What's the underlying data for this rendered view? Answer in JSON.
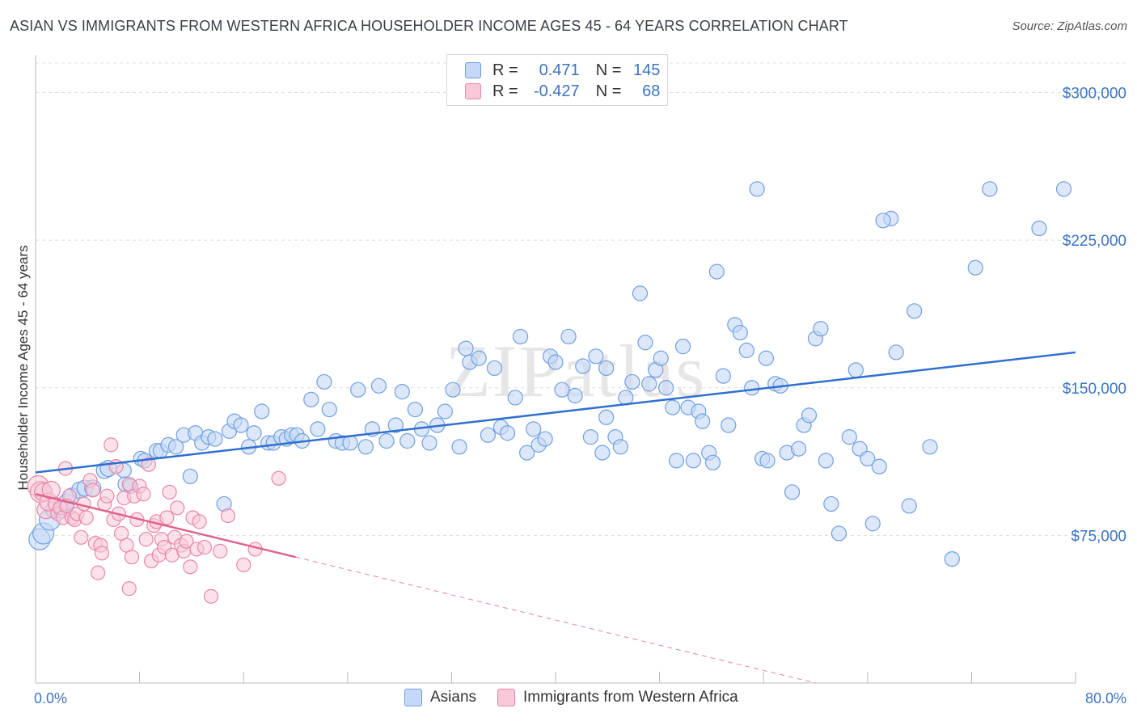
{
  "header": {
    "title": "ASIAN VS IMMIGRANTS FROM WESTERN AFRICA HOUSEHOLDER INCOME AGES 45 - 64 YEARS CORRELATION CHART",
    "source": "Source: ZipAtlas.com"
  },
  "legend_top": {
    "r_label": "R =",
    "n_label": "N =",
    "rows": [
      {
        "r": "0.471",
        "n": "145"
      },
      {
        "r": "-0.427",
        "n": "68"
      }
    ]
  },
  "colors": {
    "asians": "#6f9fe0",
    "asians_fill": "#c5d8f5",
    "asians_line": "#2f6fd0",
    "immigrants": "#ea86a8",
    "immigrants_fill": "#f8cad9",
    "immigrants_line": "#e0628e",
    "axis_label": "#3a75c4",
    "grid": "#dcdcdc"
  },
  "chart_data": {
    "type": "scatter",
    "title": "ASIAN VS IMMIGRANTS FROM WESTERN AFRICA HOUSEHOLDER INCOME AGES 45 - 64 YEARS CORRELATION CHART",
    "xlabel": "",
    "ylabel": "Householder Income Ages 45 - 64 years",
    "xlim": [
      0,
      80
    ],
    "ylim": [
      0,
      315000
    ],
    "x_tick_labels": [
      "0.0%",
      "80.0%"
    ],
    "y_ticks": [
      75000,
      150000,
      225000,
      300000
    ],
    "y_tick_labels": [
      "$75,000",
      "$150,000",
      "$225,000",
      "$300,000"
    ],
    "grid": true,
    "legend_position": "bottom-center",
    "watermark": "ZIPatlas",
    "series": [
      {
        "name": "Asians",
        "r": 0.471,
        "n": 145,
        "trend": {
          "x": [
            0,
            80
          ],
          "y": [
            107000,
            168000
          ]
        },
        "points": [
          [
            0.3,
            73000
          ],
          [
            0.6,
            76000
          ],
          [
            1.1,
            83000
          ],
          [
            1.4,
            88000
          ],
          [
            2.0,
            88000
          ],
          [
            2.4,
            92000
          ],
          [
            2.8,
            95000
          ],
          [
            3.4,
            98000
          ],
          [
            3.8,
            99000
          ],
          [
            4.4,
            99000
          ],
          [
            5.3,
            108000
          ],
          [
            5.6,
            109000
          ],
          [
            6.8,
            108000
          ],
          [
            6.9,
            101000
          ],
          [
            7.3,
            100000
          ],
          [
            8.1,
            114000
          ],
          [
            8.4,
            113000
          ],
          [
            9.3,
            118000
          ],
          [
            9.6,
            118000
          ],
          [
            10.2,
            121000
          ],
          [
            10.8,
            120000
          ],
          [
            11.4,
            126000
          ],
          [
            11.9,
            105000
          ],
          [
            12.3,
            127000
          ],
          [
            12.8,
            122000
          ],
          [
            13.3,
            125000
          ],
          [
            13.8,
            124000
          ],
          [
            14.5,
            91000
          ],
          [
            14.9,
            128000
          ],
          [
            15.3,
            133000
          ],
          [
            15.8,
            131000
          ],
          [
            16.4,
            120000
          ],
          [
            16.8,
            127000
          ],
          [
            17.4,
            138000
          ],
          [
            17.9,
            122000
          ],
          [
            18.3,
            122000
          ],
          [
            18.9,
            125000
          ],
          [
            19.3,
            124000
          ],
          [
            19.7,
            126000
          ],
          [
            20.1,
            126000
          ],
          [
            20.5,
            123000
          ],
          [
            21.2,
            144000
          ],
          [
            21.7,
            129000
          ],
          [
            22.2,
            153000
          ],
          [
            22.6,
            139000
          ],
          [
            23.1,
            123000
          ],
          [
            23.6,
            122000
          ],
          [
            24.2,
            122000
          ],
          [
            24.8,
            149000
          ],
          [
            25.4,
            120000
          ],
          [
            25.9,
            129000
          ],
          [
            26.4,
            151000
          ],
          [
            27.0,
            123000
          ],
          [
            27.7,
            131000
          ],
          [
            28.2,
            148000
          ],
          [
            28.6,
            123000
          ],
          [
            29.2,
            139000
          ],
          [
            29.7,
            129000
          ],
          [
            30.3,
            122000
          ],
          [
            30.9,
            131000
          ],
          [
            31.5,
            138000
          ],
          [
            32.1,
            149000
          ],
          [
            32.6,
            120000
          ],
          [
            33.1,
            170000
          ],
          [
            33.4,
            163000
          ],
          [
            34.1,
            165000
          ],
          [
            34.8,
            126000
          ],
          [
            35.3,
            160000
          ],
          [
            35.8,
            130000
          ],
          [
            36.3,
            127000
          ],
          [
            36.9,
            145000
          ],
          [
            37.3,
            176000
          ],
          [
            37.8,
            117000
          ],
          [
            38.3,
            129000
          ],
          [
            38.7,
            121000
          ],
          [
            39.2,
            124000
          ],
          [
            39.6,
            166000
          ],
          [
            40.0,
            163000
          ],
          [
            40.5,
            149000
          ],
          [
            41.0,
            176000
          ],
          [
            41.5,
            146000
          ],
          [
            42.1,
            161000
          ],
          [
            42.7,
            125000
          ],
          [
            43.1,
            166000
          ],
          [
            43.6,
            117000
          ],
          [
            43.9,
            135000
          ],
          [
            44.6,
            125000
          ],
          [
            45.0,
            120000
          ],
          [
            45.4,
            145000
          ],
          [
            45.9,
            153000
          ],
          [
            46.5,
            198000
          ],
          [
            46.9,
            173000
          ],
          [
            47.2,
            152000
          ],
          [
            47.7,
            159000
          ],
          [
            48.1,
            165000
          ],
          [
            48.5,
            150000
          ],
          [
            49.0,
            140000
          ],
          [
            49.3,
            113000
          ],
          [
            49.8,
            171000
          ],
          [
            50.2,
            140000
          ],
          [
            50.6,
            113000
          ],
          [
            51.0,
            138000
          ],
          [
            51.3,
            133000
          ],
          [
            51.8,
            117000
          ],
          [
            52.1,
            112000
          ],
          [
            52.4,
            209000
          ],
          [
            52.9,
            156000
          ],
          [
            53.3,
            131000
          ],
          [
            53.8,
            182000
          ],
          [
            54.2,
            178000
          ],
          [
            54.7,
            169000
          ],
          [
            55.1,
            150000
          ],
          [
            55.5,
            251000
          ],
          [
            55.9,
            114000
          ],
          [
            56.3,
            113000
          ],
          [
            56.9,
            152000
          ],
          [
            57.3,
            151000
          ],
          [
            57.8,
            117000
          ],
          [
            58.2,
            97000
          ],
          [
            58.7,
            119000
          ],
          [
            59.1,
            131000
          ],
          [
            59.5,
            136000
          ],
          [
            60.0,
            175000
          ],
          [
            60.4,
            180000
          ],
          [
            60.8,
            113000
          ],
          [
            61.2,
            91000
          ],
          [
            61.8,
            76000
          ],
          [
            62.6,
            125000
          ],
          [
            63.1,
            159000
          ],
          [
            63.4,
            119000
          ],
          [
            64.0,
            114000
          ],
          [
            64.4,
            81000
          ],
          [
            64.9,
            110000
          ],
          [
            65.8,
            236000
          ],
          [
            66.2,
            168000
          ],
          [
            67.2,
            90000
          ],
          [
            67.6,
            189000
          ],
          [
            68.8,
            120000
          ],
          [
            70.5,
            63000
          ],
          [
            72.3,
            211000
          ],
          [
            73.4,
            251000
          ],
          [
            77.2,
            231000
          ],
          [
            79.1,
            251000
          ],
          [
            65.2,
            235000
          ],
          [
            43.9,
            160000
          ],
          [
            56.2,
            165000
          ]
        ]
      },
      {
        "name": "Immigrants from Western Africa",
        "r": -0.427,
        "n": 68,
        "trend": {
          "x": [
            0,
            20
          ],
          "y": [
            96000,
            64000
          ],
          "dashed_to": {
            "x": 80,
            "y": -32000
          }
        },
        "points": [
          [
            0.2,
            100000
          ],
          [
            0.4,
            97000
          ],
          [
            0.6,
            97000
          ],
          [
            0.8,
            88000
          ],
          [
            1.0,
            92000
          ],
          [
            1.2,
            98000
          ],
          [
            1.5,
            91000
          ],
          [
            1.7,
            86000
          ],
          [
            1.9,
            89000
          ],
          [
            2.1,
            84000
          ],
          [
            2.3,
            109000
          ],
          [
            2.6,
            95000
          ],
          [
            2.8,
            84000
          ],
          [
            3.0,
            83000
          ],
          [
            3.2,
            86000
          ],
          [
            3.5,
            74000
          ],
          [
            3.7,
            91000
          ],
          [
            3.9,
            84000
          ],
          [
            4.2,
            103000
          ],
          [
            4.4,
            98000
          ],
          [
            4.6,
            71000
          ],
          [
            4.8,
            56000
          ],
          [
            5.0,
            70000
          ],
          [
            5.3,
            91000
          ],
          [
            5.5,
            95000
          ],
          [
            5.8,
            121000
          ],
          [
            6.0,
            83000
          ],
          [
            6.2,
            110000
          ],
          [
            6.4,
            86000
          ],
          [
            6.6,
            76000
          ],
          [
            6.8,
            94000
          ],
          [
            7.0,
            70000
          ],
          [
            7.2,
            101000
          ],
          [
            7.4,
            64000
          ],
          [
            7.6,
            95000
          ],
          [
            7.8,
            83000
          ],
          [
            8.0,
            100000
          ],
          [
            8.3,
            96000
          ],
          [
            8.5,
            73000
          ],
          [
            8.7,
            111000
          ],
          [
            8.9,
            62000
          ],
          [
            9.1,
            80000
          ],
          [
            9.3,
            82000
          ],
          [
            9.5,
            65000
          ],
          [
            9.7,
            73000
          ],
          [
            9.9,
            69000
          ],
          [
            10.1,
            84000
          ],
          [
            10.3,
            97000
          ],
          [
            10.5,
            65000
          ],
          [
            10.7,
            74000
          ],
          [
            10.9,
            89000
          ],
          [
            11.2,
            70000
          ],
          [
            11.4,
            67000
          ],
          [
            11.6,
            72000
          ],
          [
            11.9,
            59000
          ],
          [
            12.1,
            84000
          ],
          [
            12.4,
            68000
          ],
          [
            12.6,
            82000
          ],
          [
            13.0,
            69000
          ],
          [
            13.5,
            44000
          ],
          [
            14.2,
            67000
          ],
          [
            14.8,
            85000
          ],
          [
            16.0,
            60000
          ],
          [
            16.9,
            68000
          ],
          [
            18.7,
            104000
          ],
          [
            7.2,
            48000
          ],
          [
            5.1,
            66000
          ],
          [
            2.4,
            90000
          ]
        ]
      }
    ]
  },
  "bottom_legend": {
    "asians_label": "Asians",
    "immigrants_label": "Immigrants from Western Africa"
  },
  "axes": {
    "ylabel": "Householder Income Ages 45 - 64 years",
    "x_min_label": "0.0%",
    "x_max_label": "80.0%"
  }
}
